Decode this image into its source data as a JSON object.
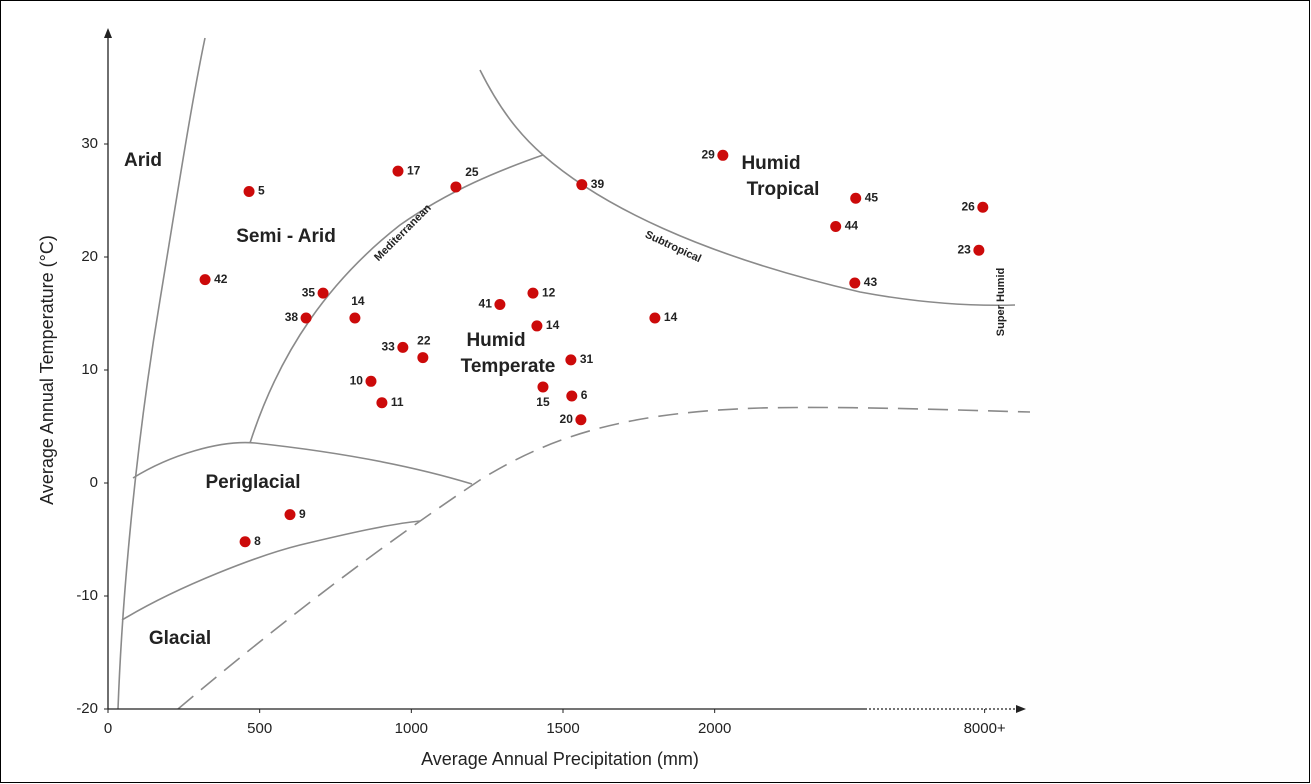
{
  "chart_data": {
    "type": "scatter",
    "x_label": "Average Annual Precipitation (mm)",
    "y_label": "Average Annual Temperature (°C)",
    "xlim": [
      0,
      3000
    ],
    "ylim": [
      -20,
      40
    ],
    "xticks": [
      0,
      500,
      1000,
      1500,
      2000,
      {
        "value": 2890,
        "label": "8000+"
      }
    ],
    "yticks": [
      -20,
      -10,
      0,
      10,
      20,
      30
    ],
    "series": [
      {
        "color": "#cc0a0a",
        "x": [
          465,
          320,
          709,
          653,
          814,
          956,
          1147,
          972,
          1038,
          867,
          903,
          1292,
          1401,
          1414,
          1526,
          1434,
          1529,
          1559,
          1562,
          1803,
          2027,
          2465,
          2399,
          2462,
          2884,
          2871,
          600,
          452
        ],
        "values": [
          25.8,
          18.0,
          16.8,
          14.6,
          14.6,
          27.6,
          26.2,
          12.0,
          11.1,
          9.0,
          7.1,
          15.8,
          16.8,
          13.9,
          10.9,
          8.5,
          7.7,
          5.6,
          26.4,
          14.6,
          29.0,
          25.2,
          22.7,
          17.7,
          24.4,
          20.6,
          -2.8,
          -5.2
        ],
        "point_labels": [
          "5",
          "42",
          "35",
          "38",
          "14",
          "17",
          "25",
          "33",
          "22",
          "10",
          "11",
          "41",
          "12",
          "14",
          "31",
          "15",
          "6",
          "20",
          "39",
          "14",
          "29",
          "45",
          "44",
          "43",
          "26",
          "23",
          "9",
          "8"
        ]
      }
    ],
    "regions": [
      [
        "Arid"
      ],
      [
        "Semi - Arid"
      ],
      [
        "Humid",
        "Temperate"
      ],
      [
        "Humid",
        "Tropical"
      ],
      [
        "Periglacial"
      ],
      [
        "Glacial"
      ]
    ],
    "boundary_labels": [
      "Mediterranean",
      "Subtropical",
      "Super Humid"
    ]
  }
}
